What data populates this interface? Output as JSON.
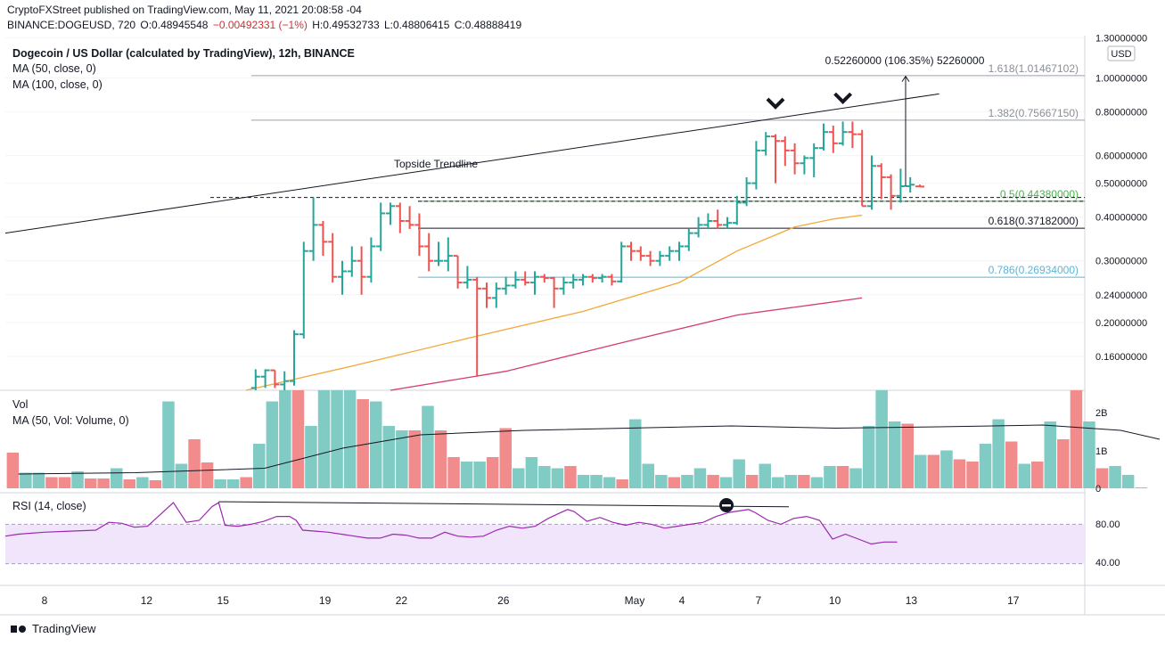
{
  "header": {
    "publish_line": "CryptoFXStreet published on TradingView.com, May 11, 2021 20:08:58 -04",
    "symbol": "BINANCE:DOGEUSD, 720",
    "O": "O:0.48945548",
    "change": "−0.00492331 (−1%)",
    "H": "H:0.49532733",
    "L": "L:0.48806415",
    "C": "C:0.48888419"
  },
  "indicators": {
    "title": "Dogecoin / US Dollar (calculated by TradingView), 12h, BINANCE",
    "ma50": "MA (50, close, 0)",
    "ma100": "MA (100, close, 0)",
    "vol_title": "Vol",
    "vol_ma": "MA (50, Vol: Volume, 0)",
    "rsi_title": "RSI (14, close)"
  },
  "footer": {
    "brand": "TradingView"
  },
  "colors": {
    "up": "#26a69a",
    "down": "#ef5350",
    "vol_up": "#80cbc4",
    "vol_down": "#f28b8b",
    "ma50": "#f2a83a",
    "ma100": "#d63e6a",
    "fib05": "#4caf50",
    "fib786": "#5ab4d8",
    "rsi_line": "#9c27b0",
    "rsi_band": "#f1e5fb"
  },
  "chart_data": {
    "type": "candlestick",
    "timeframe": "12h",
    "currency": "USD",
    "price_axis": {
      "scale": "log",
      "ticks": [
        "1.30000000",
        "1.00000000",
        "0.80000000",
        "0.60000000",
        "0.50000000",
        "0.40000000",
        "0.30000000",
        "0.24000000",
        "0.20000000",
        "0.16000000"
      ],
      "tick_values": [
        1.3,
        1.0,
        0.8,
        0.6,
        0.5,
        0.4,
        0.3,
        0.24,
        0.2,
        0.16
      ],
      "range": [
        0.128,
        1.32
      ]
    },
    "x_ticks": [
      {
        "day": 8,
        "label": "8"
      },
      {
        "day": 12,
        "label": "12"
      },
      {
        "day": 15,
        "label": "15"
      },
      {
        "day": 19,
        "label": "19"
      },
      {
        "day": 22,
        "label": "22"
      },
      {
        "day": 26,
        "label": "26"
      },
      {
        "day": 30,
        "label": "May"
      },
      {
        "day": 33,
        "label": "4"
      },
      {
        "day": 36,
        "label": "7"
      },
      {
        "day": 39,
        "label": "10"
      },
      {
        "day": 42,
        "label": "13"
      },
      {
        "day": 46,
        "label": "17"
      }
    ],
    "x_axis_note": "day index counts from April 0; May 1 = 31",
    "candles": [
      [
        13.0,
        0.13,
        0.147,
        0.126,
        0.14
      ],
      [
        13.5,
        0.14,
        0.147,
        0.13,
        0.146
      ],
      [
        14.0,
        0.146,
        0.146,
        0.13,
        0.133
      ],
      [
        14.5,
        0.133,
        0.145,
        0.128,
        0.136
      ],
      [
        15.0,
        0.136,
        0.19,
        0.132,
        0.185
      ],
      [
        15.5,
        0.185,
        0.34,
        0.18,
        0.32
      ],
      [
        16.0,
        0.32,
        0.455,
        0.3,
        0.38
      ],
      [
        16.5,
        0.38,
        0.39,
        0.31,
        0.34
      ],
      [
        17.0,
        0.34,
        0.36,
        0.26,
        0.27
      ],
      [
        17.5,
        0.27,
        0.3,
        0.24,
        0.28
      ],
      [
        18.0,
        0.28,
        0.33,
        0.27,
        0.3
      ],
      [
        18.5,
        0.3,
        0.33,
        0.24,
        0.27
      ],
      [
        19.0,
        0.27,
        0.35,
        0.26,
        0.33
      ],
      [
        19.5,
        0.33,
        0.44,
        0.32,
        0.41
      ],
      [
        20.0,
        0.41,
        0.44,
        0.38,
        0.43
      ],
      [
        20.5,
        0.43,
        0.44,
        0.36,
        0.39
      ],
      [
        21.0,
        0.39,
        0.43,
        0.37,
        0.38
      ],
      [
        21.5,
        0.38,
        0.41,
        0.31,
        0.33
      ],
      [
        22.0,
        0.33,
        0.36,
        0.28,
        0.3
      ],
      [
        22.5,
        0.3,
        0.34,
        0.29,
        0.3
      ],
      [
        23.0,
        0.3,
        0.35,
        0.28,
        0.31
      ],
      [
        23.5,
        0.31,
        0.31,
        0.25,
        0.26
      ],
      [
        24.0,
        0.26,
        0.29,
        0.25,
        0.265
      ],
      [
        24.5,
        0.265,
        0.27,
        0.14,
        0.25
      ],
      [
        25.0,
        0.25,
        0.26,
        0.22,
        0.235
      ],
      [
        25.5,
        0.235,
        0.26,
        0.22,
        0.25
      ],
      [
        26.0,
        0.25,
        0.27,
        0.24,
        0.255
      ],
      [
        26.5,
        0.255,
        0.28,
        0.25,
        0.265
      ],
      [
        27.0,
        0.265,
        0.28,
        0.255,
        0.26
      ],
      [
        27.5,
        0.26,
        0.28,
        0.24,
        0.27
      ],
      [
        28.0,
        0.27,
        0.275,
        0.26,
        0.268
      ],
      [
        28.5,
        0.268,
        0.27,
        0.22,
        0.25
      ],
      [
        29.0,
        0.25,
        0.27,
        0.24,
        0.26
      ],
      [
        29.5,
        0.26,
        0.275,
        0.25,
        0.265
      ],
      [
        30.0,
        0.265,
        0.275,
        0.255,
        0.27
      ],
      [
        30.5,
        0.27,
        0.275,
        0.26,
        0.268
      ],
      [
        31.0,
        0.268,
        0.275,
        0.26,
        0.27
      ],
      [
        31.5,
        0.27,
        0.275,
        0.255,
        0.262
      ],
      [
        32.0,
        0.262,
        0.34,
        0.26,
        0.33
      ],
      [
        32.5,
        0.33,
        0.34,
        0.3,
        0.32
      ],
      [
        33.0,
        0.32,
        0.33,
        0.3,
        0.31
      ],
      [
        33.5,
        0.31,
        0.32,
        0.29,
        0.3
      ],
      [
        34.0,
        0.3,
        0.32,
        0.29,
        0.31
      ],
      [
        34.5,
        0.31,
        0.33,
        0.3,
        0.32
      ],
      [
        35.0,
        0.32,
        0.34,
        0.3,
        0.33
      ],
      [
        35.5,
        0.33,
        0.37,
        0.32,
        0.36
      ],
      [
        36.0,
        0.36,
        0.4,
        0.35,
        0.38
      ],
      [
        36.5,
        0.38,
        0.41,
        0.37,
        0.39
      ],
      [
        37.0,
        0.39,
        0.42,
        0.37,
        0.38
      ],
      [
        37.5,
        0.38,
        0.4,
        0.37,
        0.385
      ],
      [
        38.0,
        0.385,
        0.46,
        0.38,
        0.44
      ],
      [
        38.5,
        0.44,
        0.52,
        0.43,
        0.5
      ],
      [
        39.0,
        0.5,
        0.66,
        0.48,
        0.62
      ],
      [
        39.5,
        0.62,
        0.7,
        0.6,
        0.68
      ],
      [
        40.0,
        0.68,
        0.69,
        0.5,
        0.66
      ],
      [
        40.5,
        0.66,
        0.68,
        0.56,
        0.62
      ],
      [
        41.0,
        0.62,
        0.65,
        0.53,
        0.57
      ],
      [
        41.5,
        0.57,
        0.6,
        0.53,
        0.59
      ],
      [
        42.0,
        0.59,
        0.65,
        0.52,
        0.63
      ],
      [
        42.5,
        0.63,
        0.74,
        0.62,
        0.7
      ],
      [
        43.0,
        0.7,
        0.73,
        0.61,
        0.65
      ],
      [
        43.5,
        0.65,
        0.75,
        0.64,
        0.7
      ],
      [
        44.0,
        0.7,
        0.75,
        0.63,
        0.69
      ],
      [
        44.5,
        0.69,
        0.71,
        0.43,
        0.43
      ],
      [
        45.0,
        0.43,
        0.6,
        0.42,
        0.56
      ],
      [
        45.5,
        0.56,
        0.57,
        0.45,
        0.52
      ],
      [
        46.0,
        0.52,
        0.53,
        0.42,
        0.46
      ],
      [
        46.5,
        0.46,
        0.55,
        0.44,
        0.49
      ],
      [
        47.0,
        0.49,
        0.52,
        0.47,
        0.495
      ],
      [
        47.5,
        0.4895,
        0.4953,
        0.4881,
        0.4889
      ]
    ],
    "volume": [
      [
        0.5,
        0.8,
        0
      ],
      [
        1.0,
        0.35,
        1
      ],
      [
        1.5,
        0.35,
        1
      ],
      [
        2.0,
        0.25,
        0
      ],
      [
        2.5,
        0.25,
        0
      ],
      [
        3.0,
        0.38,
        1
      ],
      [
        3.5,
        0.22,
        0
      ],
      [
        4.0,
        0.22,
        0
      ],
      [
        4.5,
        0.45,
        1
      ],
      [
        5.0,
        0.2,
        0
      ],
      [
        5.5,
        0.25,
        1
      ],
      [
        6.0,
        0.18,
        0
      ],
      [
        6.5,
        1.95,
        1
      ],
      [
        7.0,
        0.55,
        1
      ],
      [
        7.5,
        1.1,
        0
      ],
      [
        8.0,
        0.58,
        0
      ],
      [
        8.5,
        0.2,
        1
      ],
      [
        9.0,
        0.2,
        1
      ],
      [
        9.5,
        0.25,
        0
      ],
      [
        10.0,
        1.0,
        1
      ],
      [
        10.5,
        1.95,
        1
      ],
      [
        11.0,
        2.2,
        1
      ],
      [
        11.5,
        2.2,
        0
      ],
      [
        12.0,
        1.4,
        1
      ],
      [
        12.5,
        2.2,
        1
      ],
      [
        13.0,
        2.2,
        1
      ],
      [
        13.5,
        2.2,
        1
      ],
      [
        14.0,
        2.0,
        0
      ],
      [
        14.5,
        1.95,
        1
      ],
      [
        15.0,
        1.4,
        1
      ],
      [
        15.5,
        1.3,
        1
      ],
      [
        16.0,
        1.3,
        0
      ],
      [
        16.5,
        1.85,
        1
      ],
      [
        17.0,
        1.3,
        0
      ],
      [
        17.5,
        0.7,
        0
      ],
      [
        18.0,
        0.6,
        1
      ],
      [
        18.5,
        0.6,
        1
      ],
      [
        19.0,
        0.7,
        0
      ],
      [
        19.5,
        1.35,
        0
      ],
      [
        20.0,
        0.45,
        1
      ],
      [
        20.5,
        0.7,
        1
      ],
      [
        21.0,
        0.5,
        1
      ],
      [
        21.5,
        0.45,
        1
      ],
      [
        22.0,
        0.5,
        0
      ],
      [
        22.5,
        0.3,
        1
      ],
      [
        23.0,
        0.3,
        1
      ],
      [
        23.5,
        0.25,
        1
      ],
      [
        24.0,
        0.2,
        0
      ],
      [
        24.5,
        1.55,
        1
      ],
      [
        25.0,
        0.55,
        1
      ],
      [
        25.5,
        0.3,
        1
      ],
      [
        26.0,
        0.25,
        0
      ],
      [
        26.5,
        0.3,
        1
      ],
      [
        27.0,
        0.45,
        1
      ],
      [
        27.5,
        0.3,
        0
      ],
      [
        28.0,
        0.25,
        1
      ],
      [
        28.5,
        0.65,
        1
      ],
      [
        29.0,
        0.3,
        0
      ],
      [
        29.5,
        0.55,
        1
      ],
      [
        30.0,
        0.25,
        1
      ],
      [
        30.5,
        0.3,
        1
      ],
      [
        31.0,
        0.3,
        0
      ],
      [
        31.5,
        0.25,
        1
      ],
      [
        32.0,
        0.5,
        1
      ],
      [
        32.5,
        0.5,
        0
      ],
      [
        33.0,
        0.45,
        1
      ],
      [
        33.5,
        1.4,
        1
      ],
      [
        34.0,
        2.2,
        1
      ],
      [
        34.5,
        1.5,
        1
      ],
      [
        35.0,
        1.45,
        0
      ],
      [
        35.5,
        0.75,
        1
      ],
      [
        36.0,
        0.75,
        0
      ],
      [
        36.5,
        0.85,
        1
      ],
      [
        37.0,
        0.65,
        0
      ],
      [
        37.5,
        0.6,
        0
      ],
      [
        38.0,
        1.0,
        1
      ],
      [
        38.5,
        1.55,
        1
      ],
      [
        39.0,
        1.05,
        0
      ],
      [
        39.5,
        0.55,
        1
      ],
      [
        40.0,
        0.6,
        0
      ],
      [
        40.5,
        1.5,
        1
      ],
      [
        41.0,
        1.1,
        0
      ],
      [
        41.5,
        2.2,
        0
      ],
      [
        42.0,
        1.5,
        1
      ],
      [
        42.5,
        0.45,
        0
      ],
      [
        43.0,
        0.5,
        1
      ],
      [
        43.5,
        0.3,
        1
      ],
      [
        44.0,
        0.02,
        1
      ]
    ],
    "volume_axis": {
      "ticks": [
        "2B",
        "1B",
        "0"
      ],
      "tick_values": [
        2.0,
        1.0,
        0
      ]
    },
    "volume_ma": [
      [
        0.5,
        0.32
      ],
      [
        5,
        0.35
      ],
      [
        10,
        0.45
      ],
      [
        13,
        0.9
      ],
      [
        16,
        1.2
      ],
      [
        20,
        1.3
      ],
      [
        24,
        1.35
      ],
      [
        28,
        1.4
      ],
      [
        32,
        1.35
      ],
      [
        36,
        1.38
      ],
      [
        40,
        1.42
      ],
      [
        43,
        1.3
      ],
      [
        44.5,
        1.1
      ]
    ],
    "ma50": [
      [
        12.5,
        0.128
      ],
      [
        18,
        0.15
      ],
      [
        24,
        0.18
      ],
      [
        30,
        0.215
      ],
      [
        35,
        0.26
      ],
      [
        38,
        0.32
      ],
      [
        41,
        0.375
      ],
      [
        43,
        0.395
      ],
      [
        44.5,
        0.405
      ]
    ],
    "ma100": [
      [
        20,
        0.128
      ],
      [
        26,
        0.145
      ],
      [
        32,
        0.175
      ],
      [
        38,
        0.21
      ],
      [
        42,
        0.225
      ],
      [
        44.5,
        0.235
      ]
    ],
    "rsi_axis": {
      "ticks": [
        "80.00",
        "40.00"
      ],
      "tick_values": [
        80,
        40
      ],
      "band": [
        30,
        70
      ],
      "range": [
        0,
        100
      ]
    },
    "rsi": [
      [
        0,
        58
      ],
      [
        1,
        60
      ],
      [
        3,
        62
      ],
      [
        5,
        63
      ],
      [
        7,
        64
      ],
      [
        8,
        72
      ],
      [
        9,
        71
      ],
      [
        10,
        67
      ],
      [
        11,
        68
      ],
      [
        12,
        80
      ],
      [
        13,
        92
      ],
      [
        14,
        72
      ],
      [
        15,
        74
      ],
      [
        16,
        88
      ],
      [
        16.5,
        92
      ],
      [
        17,
        69
      ],
      [
        18,
        68
      ],
      [
        19,
        70
      ],
      [
        20,
        73
      ],
      [
        21,
        78
      ],
      [
        22,
        78
      ],
      [
        22.5,
        74
      ],
      [
        23,
        64
      ],
      [
        24,
        63
      ],
      [
        25,
        62
      ],
      [
        26,
        60
      ],
      [
        27,
        58
      ],
      [
        28,
        56
      ],
      [
        29,
        56
      ],
      [
        30,
        60
      ],
      [
        31,
        59
      ],
      [
        32,
        56
      ],
      [
        33,
        56
      ],
      [
        34,
        62
      ],
      [
        35,
        58
      ],
      [
        36,
        57
      ],
      [
        37,
        58
      ],
      [
        38,
        64
      ],
      [
        39,
        68
      ],
      [
        40,
        66
      ],
      [
        41,
        68
      ],
      [
        42,
        76
      ],
      [
        43,
        82
      ],
      [
        43.5,
        85
      ],
      [
        44,
        83
      ],
      [
        45,
        73
      ],
      [
        46,
        77
      ],
      [
        47,
        72
      ],
      [
        48,
        69
      ],
      [
        49,
        72
      ],
      [
        50,
        70
      ],
      [
        51,
        66
      ],
      [
        52,
        68
      ],
      [
        53,
        70
      ],
      [
        54,
        72
      ],
      [
        55,
        78
      ],
      [
        56,
        82
      ],
      [
        57,
        84
      ],
      [
        57.5,
        85
      ],
      [
        58,
        82
      ],
      [
        59,
        74
      ],
      [
        60,
        70
      ],
      [
        61,
        76
      ],
      [
        62,
        78
      ],
      [
        63,
        74
      ],
      [
        64,
        55
      ],
      [
        65,
        60
      ],
      [
        66,
        55
      ],
      [
        67,
        50
      ],
      [
        68,
        52
      ],
      [
        69,
        52
      ]
    ],
    "rsi_divergence": [
      [
        16.5,
        92
      ],
      [
        63,
        85
      ]
    ],
    "fib_levels": [
      {
        "label": "1.618(1.01467102)",
        "value": 1.01467102
      },
      {
        "label": "1.382(0.75667150)",
        "value": 0.7566715
      },
      {
        "label": "0.5(0.44380000)",
        "value": 0.4438
      },
      {
        "label": "0.618(0.37182000)",
        "value": 0.37182
      },
      {
        "label": "0.786(0.26934000)",
        "value": 0.26934
      }
    ],
    "trendline": {
      "label": "Topside Trendline",
      "from": [
        0,
        0.36
      ],
      "to": [
        48.5,
        0.9
      ]
    },
    "measure": {
      "label": "0.52260000 (106.35%) 52260000",
      "from": 0.49,
      "to": 1.01
    },
    "dashed_levels": [
      0.455,
      0.444
    ],
    "markers": [
      {
        "x": 40.0,
        "y": 0.84
      },
      {
        "x": 43.5,
        "y": 0.87
      }
    ]
  }
}
